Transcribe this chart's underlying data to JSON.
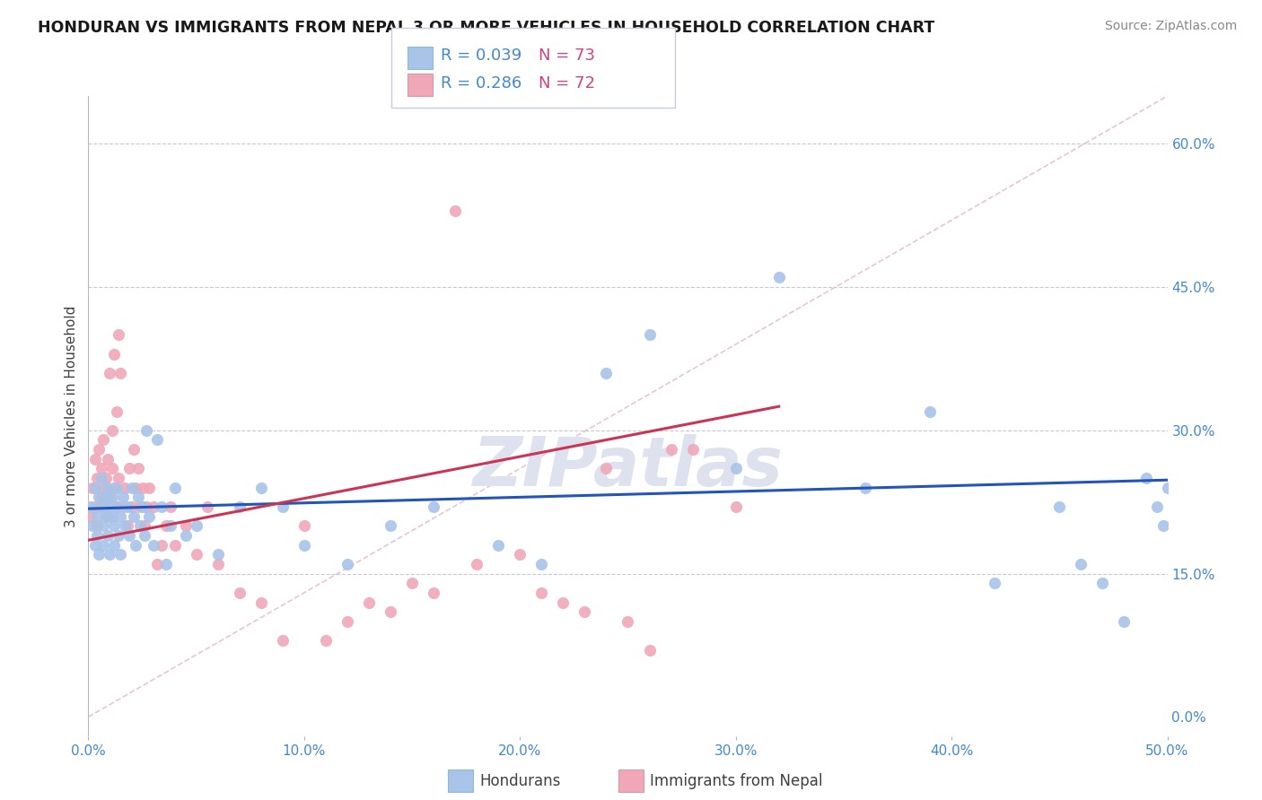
{
  "title": "HONDURAN VS IMMIGRANTS FROM NEPAL 3 OR MORE VEHICLES IN HOUSEHOLD CORRELATION CHART",
  "source": "Source: ZipAtlas.com",
  "ylabel": "3 or more Vehicles in Household",
  "xlim": [
    0.0,
    0.5
  ],
  "ylim": [
    -0.02,
    0.65
  ],
  "xticks": [
    0.0,
    0.1,
    0.2,
    0.3,
    0.4,
    0.5
  ],
  "xticklabels": [
    "0.0%",
    "10.0%",
    "20.0%",
    "30.0%",
    "40.0%",
    "50.0%"
  ],
  "yticks_right": [
    0.0,
    0.15,
    0.3,
    0.45,
    0.6
  ],
  "yticklabels_right": [
    "0.0%",
    "15.0%",
    "30.0%",
    "45.0%",
    "60.0%"
  ],
  "hlines": [
    0.15,
    0.3,
    0.45,
    0.6
  ],
  "legend_labels": [
    "Hondurans",
    "Immigrants from Nepal"
  ],
  "blue_color": "#a8c4e8",
  "pink_color": "#f0a8b8",
  "blue_line_color": "#2255bb",
  "pink_line_color": "#cc3355",
  "diagonal_color": "#e0b8c8",
  "R_blue": 0.039,
  "N_blue": 73,
  "R_pink": 0.286,
  "N_pink": 72,
  "watermark": "ZIPatlas",
  "blue_scatter_x": [
    0.001,
    0.002,
    0.003,
    0.003,
    0.004,
    0.004,
    0.005,
    0.005,
    0.006,
    0.006,
    0.007,
    0.007,
    0.008,
    0.008,
    0.009,
    0.009,
    0.01,
    0.01,
    0.011,
    0.011,
    0.012,
    0.012,
    0.013,
    0.013,
    0.014,
    0.015,
    0.015,
    0.016,
    0.017,
    0.018,
    0.019,
    0.02,
    0.021,
    0.022,
    0.023,
    0.024,
    0.025,
    0.026,
    0.027,
    0.028,
    0.03,
    0.032,
    0.034,
    0.036,
    0.038,
    0.04,
    0.045,
    0.05,
    0.06,
    0.07,
    0.08,
    0.09,
    0.1,
    0.12,
    0.14,
    0.16,
    0.19,
    0.21,
    0.24,
    0.26,
    0.3,
    0.32,
    0.36,
    0.39,
    0.42,
    0.45,
    0.46,
    0.47,
    0.48,
    0.49,
    0.495,
    0.498,
    0.5
  ],
  "blue_scatter_y": [
    0.22,
    0.2,
    0.18,
    0.24,
    0.21,
    0.19,
    0.23,
    0.17,
    0.22,
    0.25,
    0.2,
    0.18,
    0.23,
    0.21,
    0.19,
    0.24,
    0.22,
    0.17,
    0.21,
    0.23,
    0.2,
    0.18,
    0.22,
    0.24,
    0.19,
    0.21,
    0.17,
    0.23,
    0.2,
    0.22,
    0.19,
    0.24,
    0.21,
    0.18,
    0.23,
    0.2,
    0.22,
    0.19,
    0.3,
    0.21,
    0.18,
    0.29,
    0.22,
    0.16,
    0.2,
    0.24,
    0.19,
    0.2,
    0.17,
    0.22,
    0.24,
    0.22,
    0.18,
    0.16,
    0.2,
    0.22,
    0.18,
    0.16,
    0.36,
    0.4,
    0.26,
    0.46,
    0.24,
    0.32,
    0.14,
    0.22,
    0.16,
    0.14,
    0.1,
    0.25,
    0.22,
    0.2,
    0.24
  ],
  "pink_scatter_x": [
    0.001,
    0.002,
    0.003,
    0.003,
    0.004,
    0.004,
    0.005,
    0.005,
    0.006,
    0.006,
    0.007,
    0.007,
    0.008,
    0.008,
    0.009,
    0.009,
    0.01,
    0.01,
    0.011,
    0.011,
    0.012,
    0.012,
    0.013,
    0.013,
    0.014,
    0.014,
    0.015,
    0.016,
    0.017,
    0.018,
    0.019,
    0.02,
    0.021,
    0.022,
    0.023,
    0.024,
    0.025,
    0.026,
    0.027,
    0.028,
    0.03,
    0.032,
    0.034,
    0.036,
    0.038,
    0.04,
    0.045,
    0.05,
    0.055,
    0.06,
    0.07,
    0.08,
    0.09,
    0.1,
    0.11,
    0.12,
    0.13,
    0.14,
    0.15,
    0.16,
    0.17,
    0.18,
    0.2,
    0.21,
    0.22,
    0.23,
    0.24,
    0.25,
    0.26,
    0.27,
    0.28,
    0.3
  ],
  "pink_scatter_y": [
    0.21,
    0.24,
    0.22,
    0.27,
    0.2,
    0.25,
    0.22,
    0.28,
    0.23,
    0.26,
    0.24,
    0.29,
    0.22,
    0.25,
    0.21,
    0.27,
    0.23,
    0.36,
    0.26,
    0.3,
    0.24,
    0.38,
    0.22,
    0.32,
    0.25,
    0.4,
    0.36,
    0.22,
    0.24,
    0.2,
    0.26,
    0.22,
    0.28,
    0.24,
    0.26,
    0.22,
    0.24,
    0.2,
    0.22,
    0.24,
    0.22,
    0.16,
    0.18,
    0.2,
    0.22,
    0.18,
    0.2,
    0.17,
    0.22,
    0.16,
    0.13,
    0.12,
    0.08,
    0.2,
    0.08,
    0.1,
    0.12,
    0.11,
    0.14,
    0.13,
    0.53,
    0.16,
    0.17,
    0.13,
    0.12,
    0.11,
    0.26,
    0.1,
    0.07,
    0.28,
    0.28,
    0.22
  ]
}
